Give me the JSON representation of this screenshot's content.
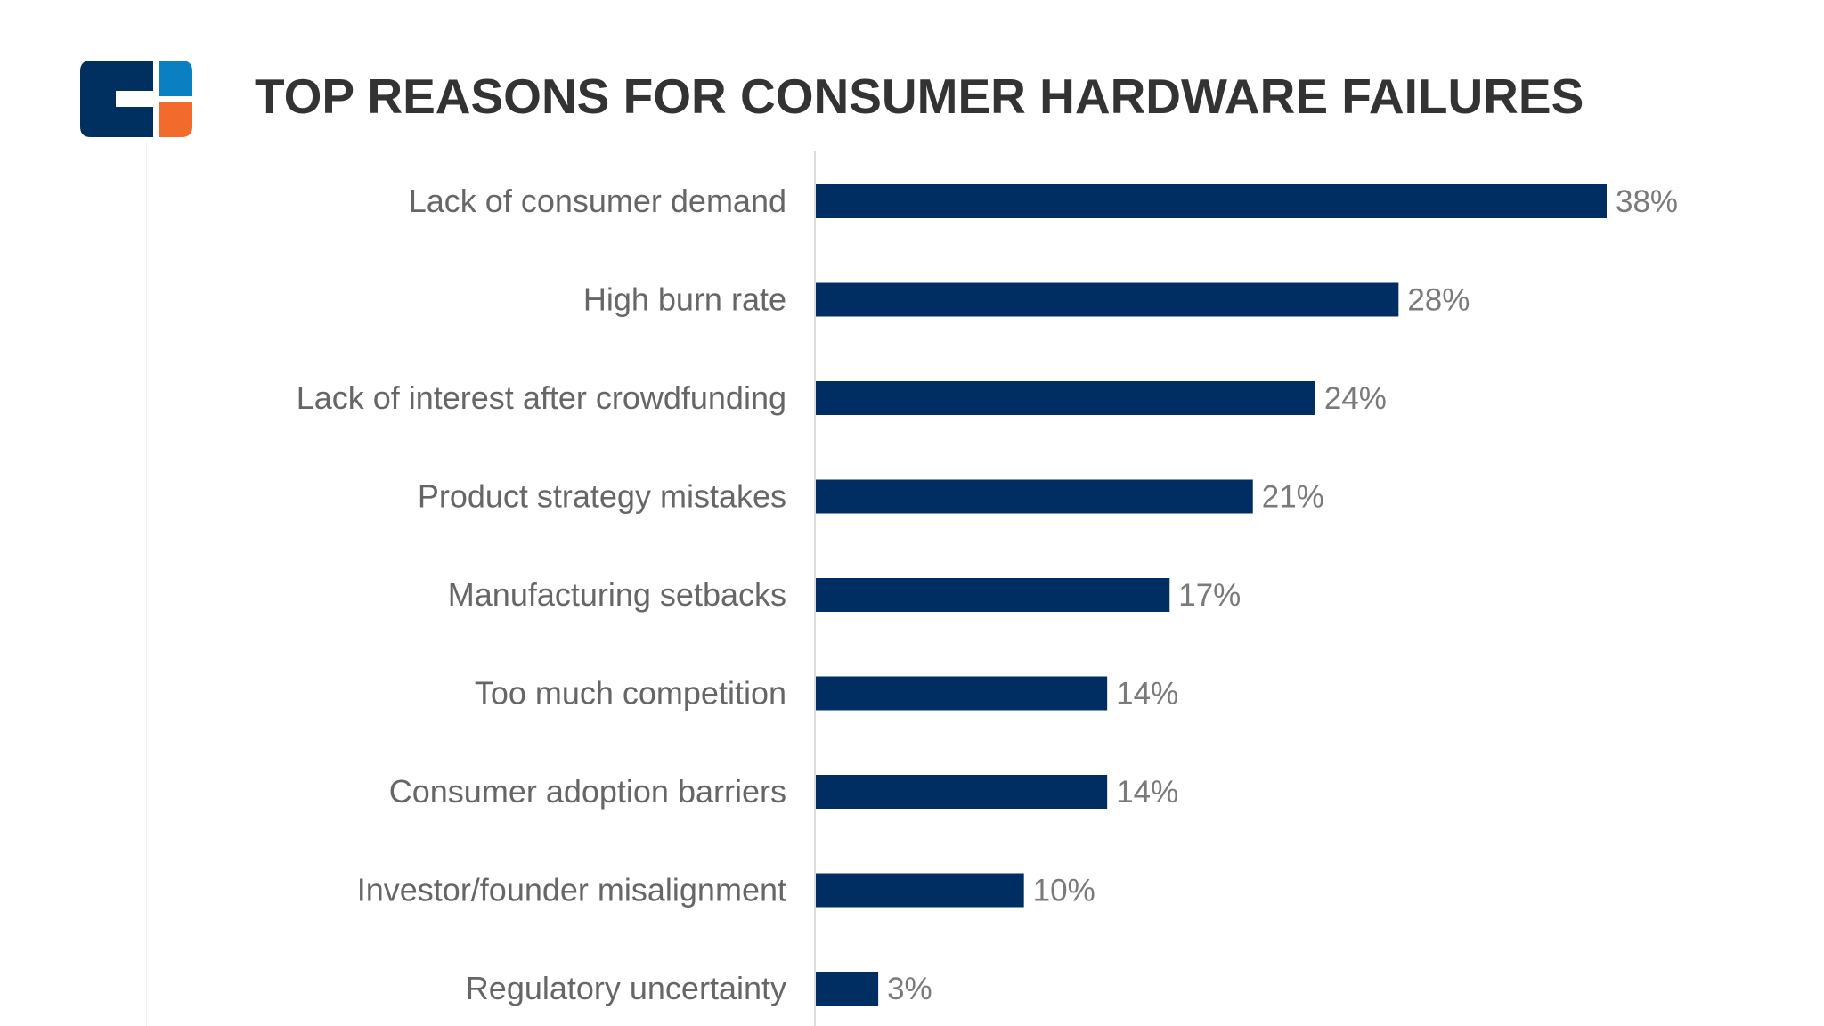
{
  "colors": {
    "bar": "#002e63",
    "logo_blue": "#00305f",
    "logo_light_blue": "#0a7fc1",
    "logo_orange": "#f26b2c",
    "title": "#333333",
    "labels": "#666666"
  },
  "logo": {
    "icon": "cb-insights-logo-icon"
  },
  "chart_data": {
    "type": "bar",
    "orientation": "horizontal",
    "title": "TOP REASONS FOR CONSUMER HARDWARE FAILURES",
    "xlabel": "",
    "ylabel": "",
    "xlim": [
      0,
      38
    ],
    "grid": false,
    "unit": "%",
    "categories": [
      "Lack of consumer demand",
      "High burn rate",
      "Lack of interest after crowdfunding",
      "Product strategy mistakes",
      "Manufacturing setbacks",
      "Too much competition",
      "Consumer adoption barriers",
      "Investor/founder misalignment",
      "Regulatory uncertainty"
    ],
    "values": [
      38,
      28,
      24,
      21,
      17,
      14,
      14,
      10,
      3
    ],
    "value_labels": [
      "38%",
      "28%",
      "24%",
      "21%",
      "17%",
      "14%",
      "14%",
      "10%",
      "3%"
    ]
  }
}
